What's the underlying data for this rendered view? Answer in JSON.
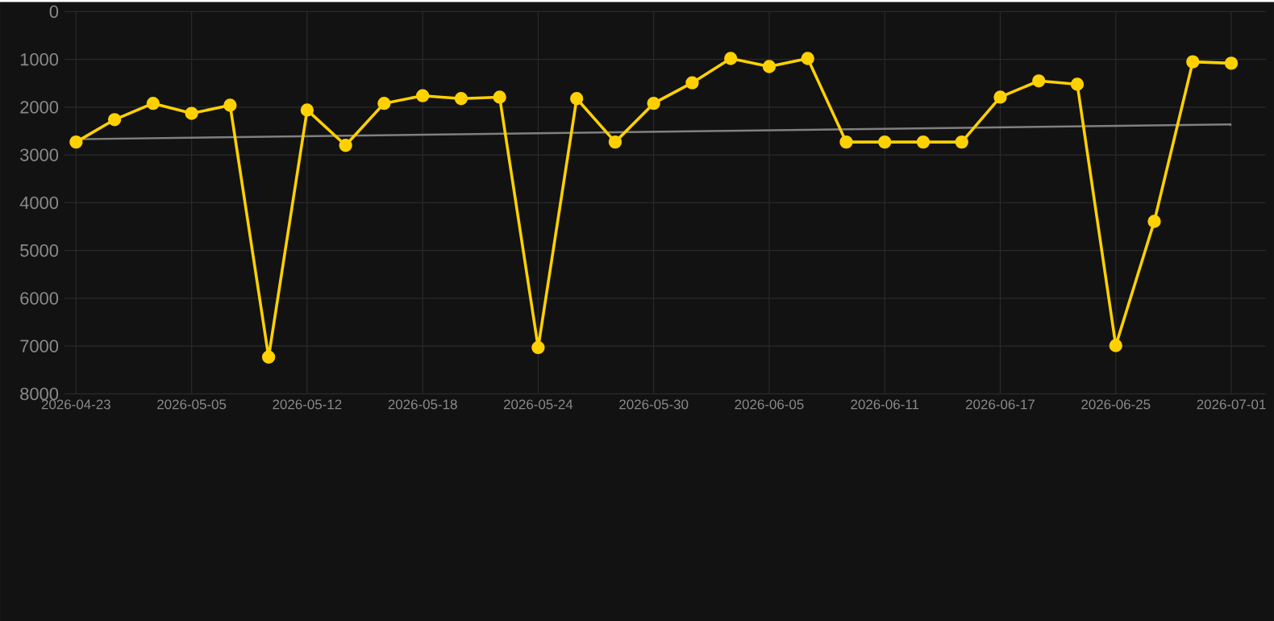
{
  "chart_data": {
    "type": "line",
    "categories": [
      "2026-04-23",
      null,
      null,
      "2026-05-05",
      null,
      null,
      "2026-05-12",
      null,
      null,
      "2026-05-18",
      null,
      null,
      "2026-05-24",
      null,
      null,
      "2026-05-30",
      null,
      null,
      "2026-06-05",
      null,
      null,
      "2026-06-11",
      null,
      null,
      "2026-06-17",
      null,
      null,
      "2026-06-25",
      null,
      null,
      "2026-07-01"
    ],
    "series": [
      {
        "color": "#ffd100",
        "marker": "circle",
        "values": [
          2730,
          2260,
          1920,
          2130,
          1960,
          7230,
          2060,
          2800,
          1920,
          1760,
          1820,
          1790,
          7030,
          1820,
          2730,
          1920,
          1490,
          980,
          1150,
          980,
          2730,
          2730,
          2730,
          2730,
          1790,
          1450,
          1520,
          6990,
          4390,
          1050,
          1080
        ]
      },
      {
        "color": "#808080",
        "marker": "none",
        "values": [
          2670,
          null,
          null,
          null,
          null,
          null,
          null,
          null,
          null,
          null,
          null,
          null,
          null,
          null,
          null,
          null,
          null,
          null,
          null,
          null,
          null,
          null,
          null,
          null,
          null,
          null,
          null,
          null,
          null,
          null,
          2360
        ]
      }
    ],
    "ylim": [
      8000,
      0
    ],
    "yticks": [
      0,
      1000,
      2000,
      3000,
      4000,
      5000,
      6000,
      7000,
      8000
    ],
    "grid": true,
    "line_style": "solid"
  }
}
